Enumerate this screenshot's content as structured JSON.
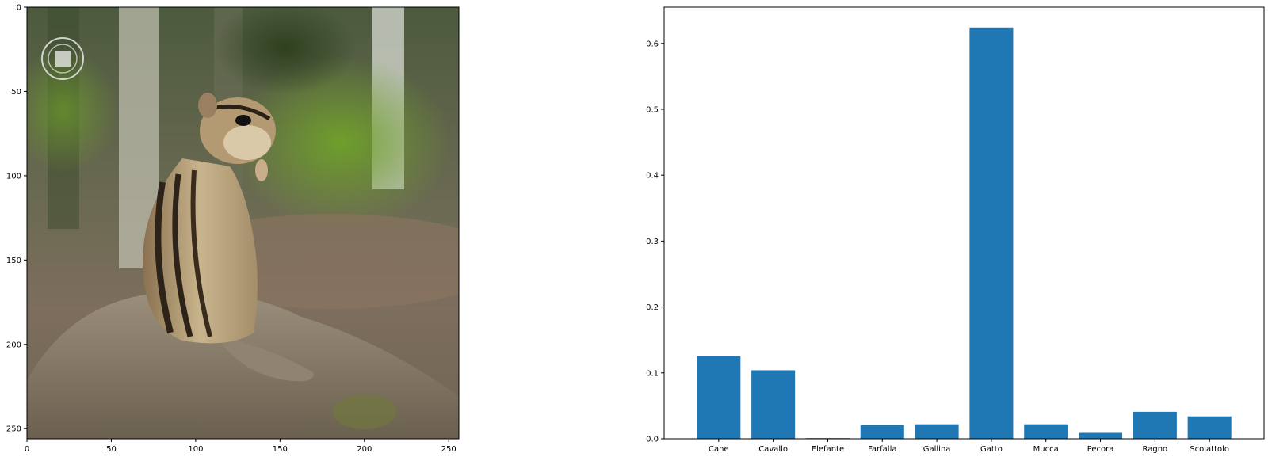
{
  "chart_data": [
    {
      "type": "image",
      "subject": "chipmunk sitting on a rock in a forest",
      "xlim": [
        0,
        256
      ],
      "ylim": [
        256,
        0
      ],
      "xticks": [
        "0",
        "50",
        "100",
        "150",
        "200",
        "250"
      ],
      "yticks": [
        "0",
        "50",
        "100",
        "150",
        "200",
        "250"
      ],
      "title": "",
      "xlabel": "",
      "ylabel": ""
    },
    {
      "type": "bar",
      "categories": [
        "Cane",
        "Cavallo",
        "Elefante",
        "Farfalla",
        "Gallina",
        "Gatto",
        "Mucca",
        "Pecora",
        "Ragno",
        "Scoiattolo"
      ],
      "values": [
        0.125,
        0.104,
        0.001,
        0.021,
        0.022,
        0.624,
        0.022,
        0.009,
        0.041,
        0.034
      ],
      "ylim": [
        0,
        0.655
      ],
      "yticks": [
        "0.0",
        "0.1",
        "0.2",
        "0.3",
        "0.4",
        "0.5",
        "0.6"
      ],
      "bar_color": "#1f77b4",
      "title": "",
      "xlabel": "",
      "ylabel": ""
    }
  ]
}
